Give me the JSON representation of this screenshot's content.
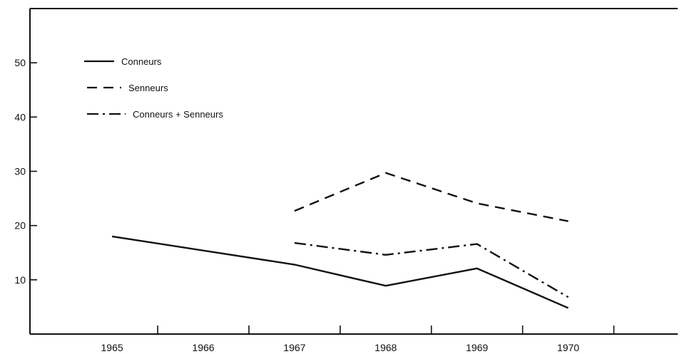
{
  "chart_data": {
    "type": "line",
    "x": [
      1965,
      1966,
      1967,
      1968,
      1969,
      1970
    ],
    "x_tick_labels": [
      "1965",
      "1966",
      "1967",
      "1968",
      "1969",
      "1970"
    ],
    "y_tick_labels": [
      "10",
      "20",
      "30",
      "40",
      "50"
    ],
    "ylim": [
      0,
      60
    ],
    "xlim": [
      1964.1,
      1971.2
    ],
    "grid": false,
    "legend_position": "top-left",
    "series": [
      {
        "name": "Conneurs",
        "style": "solid",
        "points": [
          [
            1965,
            18
          ],
          [
            1967,
            12.8
          ],
          [
            1968,
            8.9
          ],
          [
            1969,
            12.1
          ],
          [
            1970,
            4.8
          ]
        ]
      },
      {
        "name": "Senneurs",
        "style": "dashed",
        "points": [
          [
            1967,
            22.7
          ],
          [
            1968,
            29.7
          ],
          [
            1969,
            24.1
          ],
          [
            1970,
            20.8
          ]
        ]
      },
      {
        "name": "Conneurs + Senneurs",
        "style": "dashdot",
        "points": [
          [
            1967,
            16.8
          ],
          [
            1968,
            14.6
          ],
          [
            1969,
            16.6
          ],
          [
            1970,
            6.8
          ]
        ]
      }
    ],
    "colors": {
      "axis": "#111111",
      "lines": "#111111",
      "background": "#ffffff"
    }
  }
}
